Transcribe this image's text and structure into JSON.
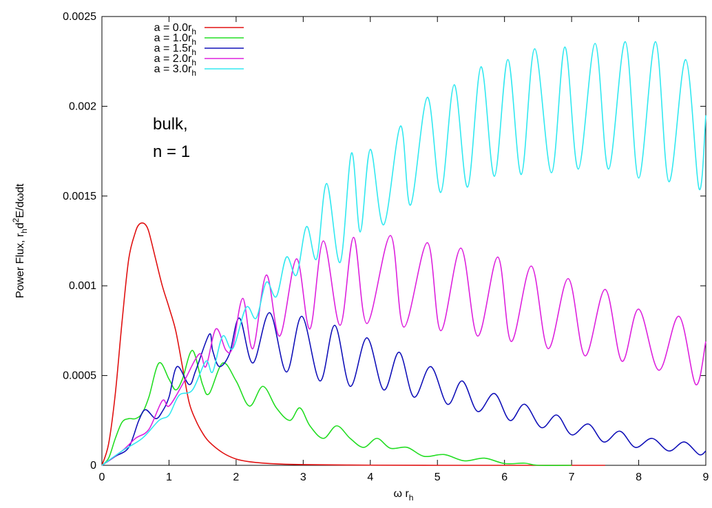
{
  "chart_data": {
    "type": "line",
    "xlabel": "ω r",
    "xlabel_sub": "h",
    "ylabel_parts": {
      "a": "Power Flux, r",
      "b": "h",
      "c": "d",
      "d": "2",
      "e": "E/dωdt"
    },
    "xlim": [
      0,
      9
    ],
    "ylim": [
      0,
      0.0025
    ],
    "x_ticks": [
      0,
      1,
      2,
      3,
      4,
      5,
      6,
      7,
      8,
      9
    ],
    "y_ticks": [
      0,
      0.0005,
      0.001,
      0.0015,
      0.002,
      0.0025
    ],
    "y_tick_labels": [
      "0",
      "0.0005",
      "0.001",
      "0.0015",
      "0.002",
      "0.0025"
    ],
    "grid": false,
    "legend_position": "top-left",
    "annotation_lines": [
      "bulk,",
      "n = 1"
    ],
    "series": [
      {
        "label_main": "a = 0.0r",
        "label_sub": "h",
        "color": "#e01010",
        "x": [
          0,
          0.1,
          0.2,
          0.3,
          0.4,
          0.5,
          0.55,
          0.6,
          0.65,
          0.7,
          0.8,
          0.9,
          1.0,
          1.1,
          1.2,
          1.3,
          1.4,
          1.5,
          1.6,
          1.8,
          2.0,
          2.2,
          2.5,
          3.0,
          4.0,
          5.0,
          6.0,
          7.0,
          7.5
        ],
        "y": [
          0,
          0.00012,
          0.0004,
          0.0008,
          0.00115,
          0.0013,
          0.00134,
          0.00135,
          0.00134,
          0.0013,
          0.00115,
          0.001,
          0.00088,
          0.00075,
          0.00055,
          0.00035,
          0.00025,
          0.00018,
          0.00013,
          7e-05,
          3.5e-05,
          2e-05,
          1e-05,
          4e-06,
          1e-06,
          0,
          0,
          0,
          0
        ]
      },
      {
        "label_main": "a = 1.0r",
        "label_sub": "h",
        "color": "#22dd22",
        "x": [
          0,
          0.1,
          0.2,
          0.3,
          0.4,
          0.5,
          0.6,
          0.7,
          0.85,
          1.0,
          1.1,
          1.2,
          1.35,
          1.5,
          1.6,
          1.8,
          2.0,
          2.2,
          2.4,
          2.6,
          2.8,
          2.95,
          3.1,
          3.3,
          3.5,
          3.7,
          3.9,
          4.1,
          4.3,
          4.55,
          4.8,
          5.1,
          5.4,
          5.7,
          6.0,
          6.3,
          6.5,
          7.0
        ],
        "y": [
          0,
          4e-05,
          0.00015,
          0.00024,
          0.00026,
          0.00026,
          0.00029,
          0.00038,
          0.00057,
          0.00048,
          0.00042,
          0.00048,
          0.00064,
          0.00045,
          0.0004,
          0.00057,
          0.00047,
          0.00033,
          0.00044,
          0.00032,
          0.00025,
          0.00032,
          0.00022,
          0.00015,
          0.00022,
          0.00015,
          0.0001,
          0.00015,
          9.5e-05,
          0.0001,
          5e-05,
          6e-05,
          2.5e-05,
          4e-05,
          1e-05,
          1.2e-05,
          0,
          0
        ]
      },
      {
        "label_main": "a = 1.5r",
        "label_sub": "h",
        "color": "#1010b8",
        "x": [
          0,
          0.2,
          0.4,
          0.55,
          0.65,
          0.8,
          0.9,
          1.0,
          1.12,
          1.3,
          1.4,
          1.6,
          1.65,
          1.75,
          1.9,
          2.05,
          2.25,
          2.5,
          2.75,
          2.98,
          3.25,
          3.47,
          3.7,
          3.95,
          4.2,
          4.43,
          4.65,
          4.9,
          5.15,
          5.37,
          5.6,
          5.85,
          6.08,
          6.3,
          6.55,
          6.78,
          7.0,
          7.25,
          7.48,
          7.72,
          7.95,
          8.2,
          8.45,
          8.68,
          8.9,
          9.0
        ],
        "y": [
          0,
          5e-05,
          0.0001,
          0.00025,
          0.00031,
          0.00026,
          0.0003,
          0.00038,
          0.00055,
          0.00045,
          0.00053,
          0.00073,
          0.00064,
          0.00055,
          0.00062,
          0.00082,
          0.00057,
          0.00085,
          0.00052,
          0.00083,
          0.00047,
          0.00078,
          0.00044,
          0.00071,
          0.00042,
          0.00063,
          0.00038,
          0.00055,
          0.00034,
          0.00047,
          0.0003,
          0.0004,
          0.00025,
          0.00034,
          0.00021,
          0.00028,
          0.00017,
          0.00023,
          0.00013,
          0.00019,
          0.0001,
          0.00015,
          8e-05,
          0.00013,
          6e-05,
          8e-05
        ]
      },
      {
        "label_main": "a = 2.0r",
        "label_sub": "h",
        "color": "#dd20dd",
        "x": [
          0,
          0.3,
          0.5,
          0.7,
          0.9,
          1.0,
          1.2,
          1.45,
          1.55,
          1.7,
          1.85,
          1.95,
          2.1,
          2.25,
          2.45,
          2.65,
          2.9,
          3.1,
          3.3,
          3.55,
          3.75,
          3.95,
          4.3,
          4.5,
          4.85,
          5.05,
          5.35,
          5.6,
          5.9,
          6.1,
          6.4,
          6.65,
          6.95,
          7.2,
          7.5,
          7.75,
          8.0,
          8.3,
          8.6,
          8.85,
          9.0
        ],
        "y": [
          0,
          8e-05,
          0.00015,
          0.0002,
          0.00036,
          0.00033,
          0.00045,
          0.00062,
          0.00055,
          0.00076,
          0.00064,
          0.00066,
          0.00093,
          0.00065,
          0.00106,
          0.00072,
          0.00115,
          0.00076,
          0.00125,
          0.00078,
          0.00127,
          0.00079,
          0.00128,
          0.00077,
          0.00124,
          0.00075,
          0.00121,
          0.00072,
          0.00116,
          0.00069,
          0.00111,
          0.00065,
          0.00104,
          0.00061,
          0.00098,
          0.00058,
          0.00087,
          0.00053,
          0.00083,
          0.00045,
          0.00069
        ]
      },
      {
        "label_main": "a = 3.0r",
        "label_sub": "h",
        "color": "#30e8f0",
        "x": [
          0,
          0.3,
          0.6,
          0.85,
          1.0,
          1.15,
          1.35,
          1.55,
          1.65,
          1.8,
          1.95,
          2.15,
          2.3,
          2.45,
          2.6,
          2.75,
          2.9,
          3.05,
          3.2,
          3.35,
          3.55,
          3.72,
          3.85,
          4.0,
          4.2,
          4.45,
          4.6,
          4.85,
          5.05,
          5.25,
          5.45,
          5.65,
          5.85,
          6.05,
          6.25,
          6.45,
          6.7,
          6.9,
          7.1,
          7.35,
          7.55,
          7.8,
          8.0,
          8.25,
          8.45,
          8.7,
          8.9,
          9.0
        ],
        "y": [
          0,
          8e-05,
          0.00015,
          0.00025,
          0.00028,
          0.00039,
          0.00042,
          0.00058,
          0.00052,
          0.00072,
          0.00065,
          0.00088,
          0.00082,
          0.00102,
          0.00094,
          0.00116,
          0.00106,
          0.00133,
          0.00115,
          0.00157,
          0.00113,
          0.00174,
          0.0013,
          0.00176,
          0.00134,
          0.00189,
          0.00145,
          0.00205,
          0.00152,
          0.00212,
          0.00155,
          0.00222,
          0.00161,
          0.00226,
          0.00162,
          0.00232,
          0.00163,
          0.00233,
          0.00165,
          0.00235,
          0.00165,
          0.00236,
          0.0016,
          0.00236,
          0.00158,
          0.00226,
          0.00154,
          0.00195
        ]
      }
    ]
  }
}
